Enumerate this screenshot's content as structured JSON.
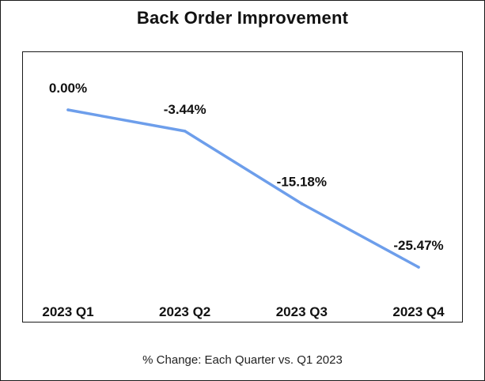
{
  "title": "Back Order Improvement",
  "subtitle": "% Change: Each Quarter vs. Q1 2023",
  "chart_data": {
    "type": "line",
    "categories": [
      "2023 Q1",
      "2023 Q2",
      "2023 Q3",
      "2023 Q4"
    ],
    "series": [
      {
        "values": [
          0.0,
          -3.44,
          -15.18,
          -25.47
        ],
        "labels": [
          "0.00%",
          "-3.44%",
          "-15.18%",
          "-25.47%"
        ],
        "color": "#6d9eeb"
      }
    ],
    "title": "Back Order Improvement",
    "subtitle": "% Change: Each Quarter vs. Q1 2023",
    "ylim": [
      -30,
      5
    ],
    "grid": false,
    "legend": "none"
  }
}
